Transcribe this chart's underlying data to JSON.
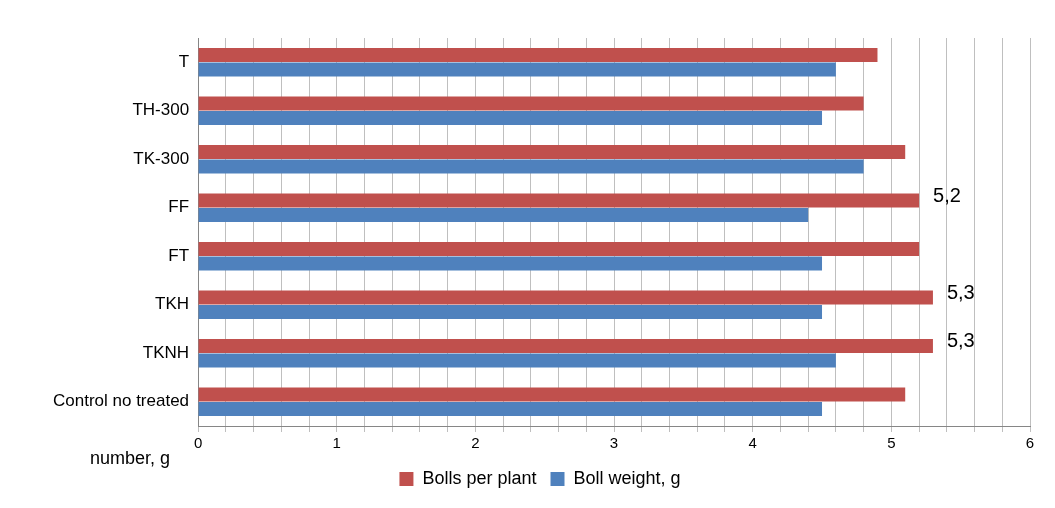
{
  "chart_data": {
    "type": "bar",
    "orientation": "horizontal",
    "categories": [
      "T",
      "TH-300",
      "TK-300",
      "FF",
      "FT",
      "TKH",
      "TKNH",
      "Control no treated"
    ],
    "series": [
      {
        "name": "Bolls per plant",
        "color": "#c0504d",
        "values": [
          4.9,
          4.8,
          5.1,
          5.2,
          5.2,
          5.3,
          5.3,
          5.1
        ],
        "value_labels": [
          null,
          null,
          null,
          "5,2",
          null,
          "5,3",
          "5,3",
          null
        ]
      },
      {
        "name": "Boll weight, g",
        "color": "#4f81bd",
        "values": [
          4.6,
          4.5,
          4.8,
          4.4,
          4.5,
          4.5,
          4.6,
          4.5
        ]
      }
    ],
    "xlabel": "number, g",
    "xlim": [
      0,
      6
    ],
    "xticks": [
      0,
      {
        "value": 0.2,
        "label": null
      },
      {
        "value": 0.4,
        "label": null
      },
      {
        "value": 0.6,
        "label": null
      },
      {
        "value": 0.8,
        "label": null
      },
      1,
      {
        "value": 1.2,
        "label": null
      },
      {
        "value": 1.4,
        "label": null
      },
      {
        "value": 1.6,
        "label": null
      },
      {
        "value": 1.8,
        "label": null
      },
      2,
      {
        "value": 2.2,
        "label": null
      },
      {
        "value": 2.4,
        "label": null
      },
      {
        "value": 2.6,
        "label": null
      },
      {
        "value": 2.8,
        "label": null
      },
      3,
      {
        "value": 3.2,
        "label": null
      },
      {
        "value": 3.4,
        "label": null
      },
      {
        "value": 3.6,
        "label": null
      },
      {
        "value": 3.8,
        "label": null
      },
      4,
      {
        "value": 4.2,
        "label": null
      },
      {
        "value": 4.4,
        "label": null
      },
      {
        "value": 4.6,
        "label": null
      },
      {
        "value": 4.8,
        "label": null
      },
      5,
      {
        "value": 5.2,
        "label": null
      },
      {
        "value": 5.4,
        "label": null
      },
      {
        "value": 5.6,
        "label": null
      },
      {
        "value": 5.8,
        "label": null
      },
      6
    ],
    "grid": "x",
    "legend": "bottom"
  }
}
